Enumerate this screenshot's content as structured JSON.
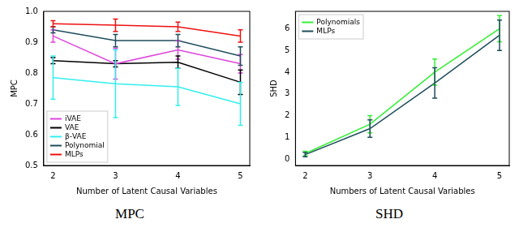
{
  "chart_data": [
    {
      "type": "line",
      "caption": "MPC",
      "x_label": "Number of Latent Causal Variables",
      "y_label": "MPC",
      "xlim": [
        1.85,
        5.15
      ],
      "xticks": [
        2,
        3,
        4,
        5
      ],
      "ylim": [
        0.5,
        1.0
      ],
      "yticks": [
        0.5,
        0.6,
        0.7,
        0.8,
        0.9,
        {
          "value": 1,
          "label": "1.0"
        }
      ],
      "grid": false,
      "legend": "lower left",
      "marker": "none",
      "series": [
        {
          "name": "iVAE",
          "color": "#dd44dd",
          "x": [
            2,
            3,
            4,
            5
          ],
          "values": [
            0.92,
            0.83,
            0.875,
            0.83
          ],
          "errors": [
            0.02,
            0.05,
            0.03,
            0.03
          ]
        },
        {
          "name": "VAE",
          "color": "#000000",
          "x": [
            2,
            3,
            4,
            5
          ],
          "values": [
            0.84,
            0.83,
            0.835,
            0.77
          ],
          "errors": [
            0.01,
            0.01,
            0.02,
            0.04
          ]
        },
        {
          "name": "β-VAE",
          "color": "#33eeee",
          "x": [
            2,
            3,
            4,
            5
          ],
          "values": [
            0.785,
            0.765,
            0.755,
            0.7
          ],
          "errors": [
            0.07,
            0.11,
            0.06,
            0.07
          ]
        },
        {
          "name": "Polynomial",
          "color": "#1e4d5c",
          "x": [
            2,
            3,
            4,
            5
          ],
          "values": [
            0.94,
            0.905,
            0.905,
            0.855
          ],
          "errors": [
            0.01,
            0.02,
            0.02,
            0.03
          ]
        },
        {
          "name": "MLPs",
          "color": "#ee1111",
          "x": [
            2,
            3,
            4,
            5
          ],
          "values": [
            0.96,
            0.955,
            0.95,
            0.92
          ],
          "errors": [
            0.01,
            0.02,
            0.015,
            0.02
          ]
        }
      ]
    },
    {
      "type": "line",
      "caption": "SHD",
      "x_label": "Numbers of Latent Causal Variables",
      "y_label": "SHD",
      "xlim": [
        1.85,
        5.15
      ],
      "xticks": [
        2,
        3,
        4,
        5
      ],
      "ylim": [
        -0.3,
        6.8
      ],
      "yticks": [
        0,
        1,
        2,
        3,
        4,
        5,
        6
      ],
      "grid": false,
      "legend": "upper left",
      "marker": "none",
      "series": [
        {
          "name": "Polynomials",
          "color": "#33ee33",
          "x": [
            2,
            3,
            4,
            5
          ],
          "values": [
            0.25,
            1.6,
            4.0,
            6.0
          ],
          "errors": [
            0.1,
            0.4,
            0.6,
            0.6
          ]
        },
        {
          "name": "MLPs",
          "color": "#1e4d5c",
          "x": [
            2,
            3,
            4,
            5
          ],
          "values": [
            0.2,
            1.4,
            3.5,
            5.7
          ],
          "errors": [
            0.1,
            0.4,
            0.7,
            0.7
          ]
        }
      ]
    }
  ]
}
